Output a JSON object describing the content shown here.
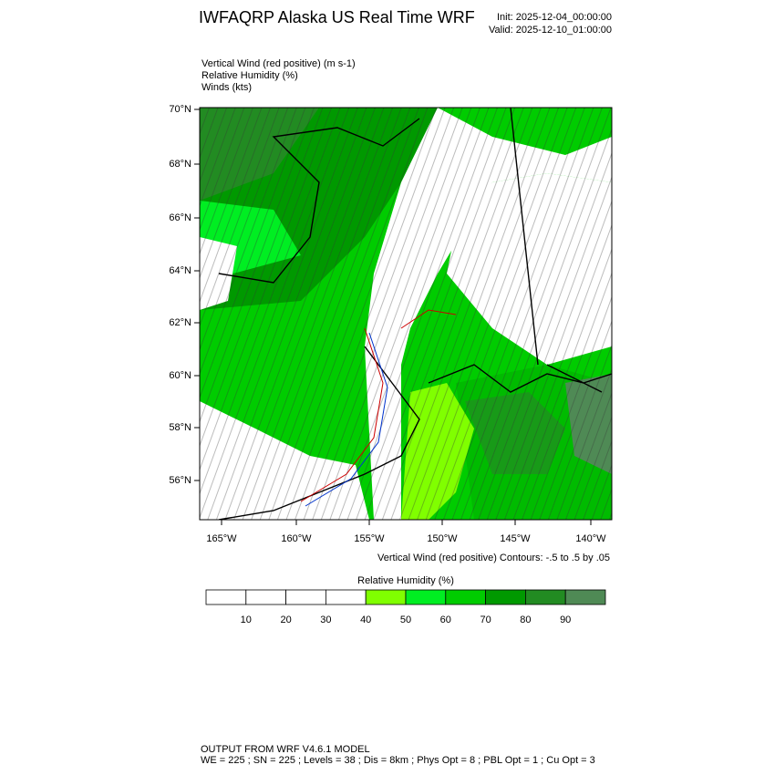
{
  "header": {
    "title": "IWFAQRP Alaska US Real Time WRF",
    "init": "Init: 2025-12-04_00:00:00",
    "valid": "Valid: 2025-12-10_01:00:00"
  },
  "fields": [
    "Vertical Wind (red positive)   (m s-1)",
    "Relative Humidity   (%)",
    "Winds   (kts)"
  ],
  "map": {
    "lat_labels": [
      "70°N",
      "68°N",
      "66°N",
      "64°N",
      "62°N",
      "60°N",
      "58°N",
      "56°N"
    ],
    "lon_labels": [
      "165°W",
      "160°W",
      "155°W",
      "150°W",
      "145°W",
      "140°W"
    ]
  },
  "contour_info": "Vertical Wind (red positive) Contours: -.5 to .5 by .05",
  "colorbar": {
    "title": "Relative Humidity  (%)",
    "labels": [
      10,
      20,
      30,
      40,
      50,
      60,
      70,
      80,
      90
    ],
    "colors": [
      "#ffffff",
      "#ffffff",
      "#ffffff",
      "#ffffff",
      "#80ff00",
      "#00ee22",
      "#00cc00",
      "#009900",
      "#228b22",
      "#4f8a55"
    ]
  },
  "footer": [
    "OUTPUT FROM WRF V4.6.1 MODEL",
    "WE = 225 ; SN = 225 ; Levels = 38 ; Dis = 8km ; Phys Opt = 8 ; PBL Opt = 1 ; Cu Opt = 3"
  ]
}
